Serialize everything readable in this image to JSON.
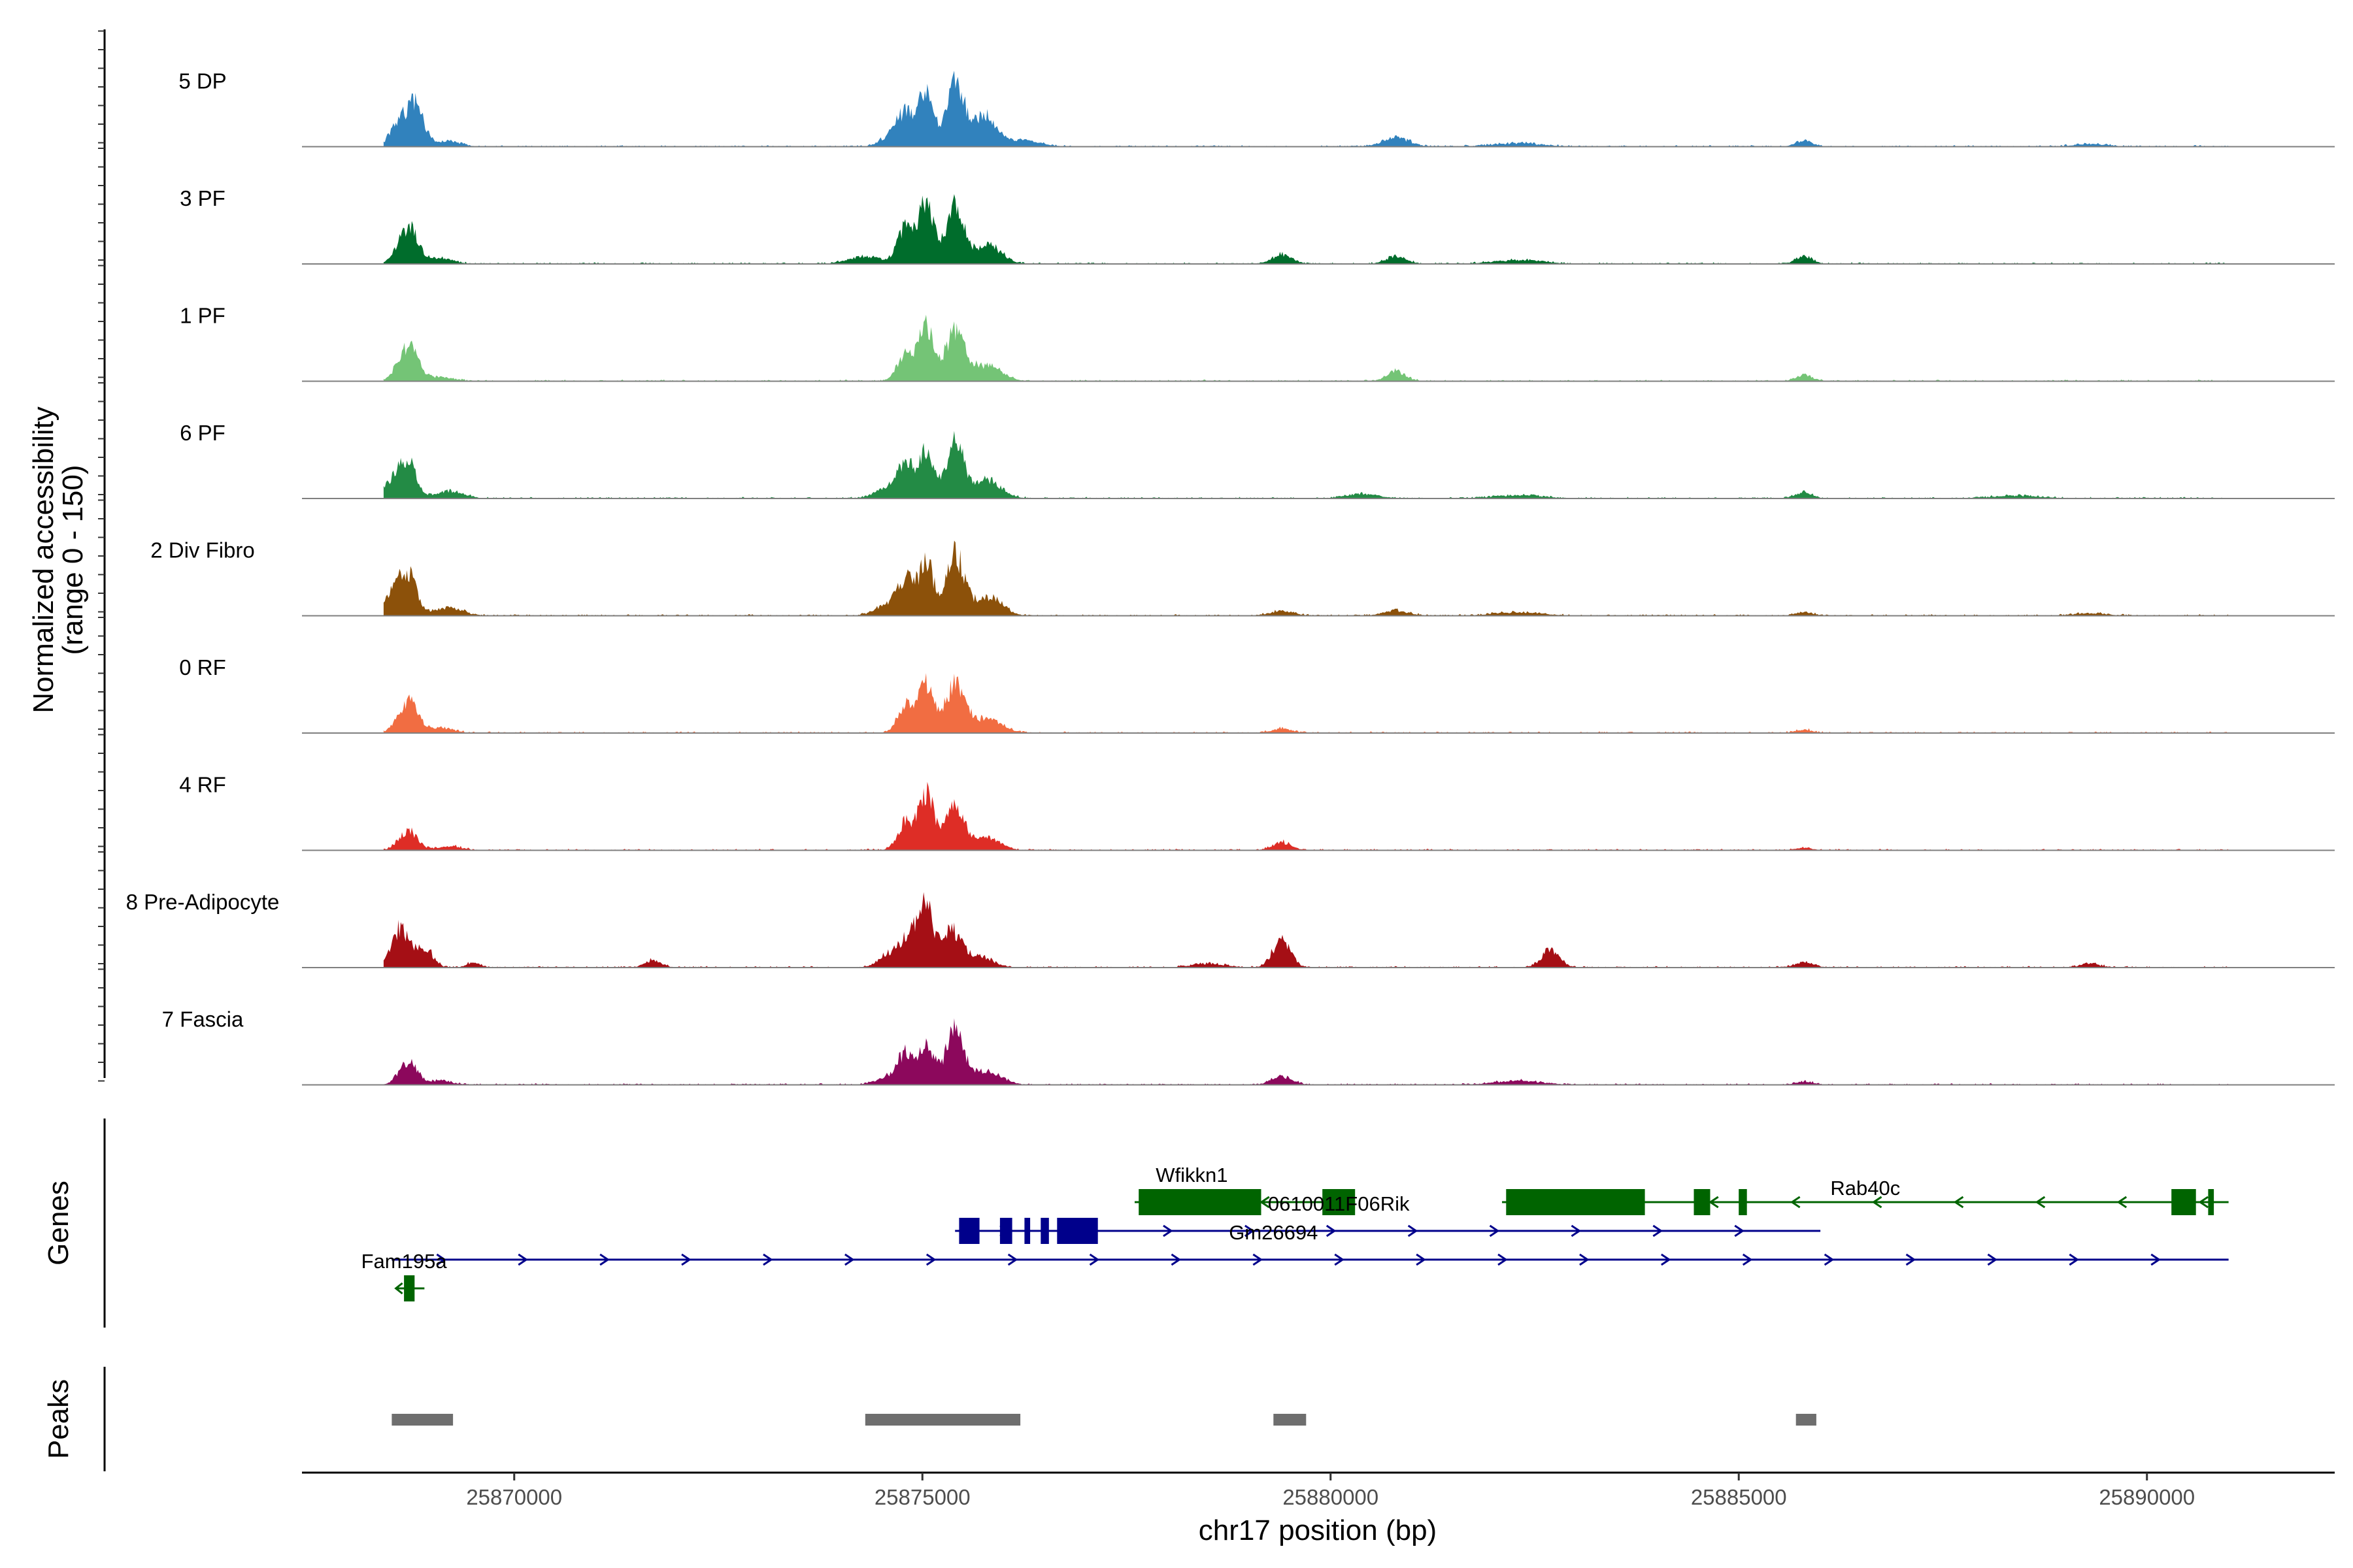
{
  "chart_data": {
    "type": "area",
    "title": "",
    "ylabel_line1": "Normalized accessibility",
    "ylabel_line2": "(range 0 - 150)",
    "xlabel": "chr17 position (bp)",
    "xlim": [
      25867400,
      25892300
    ],
    "ylim": [
      0,
      150
    ],
    "x_ticks": [
      25870000,
      25875000,
      25880000,
      25885000,
      25890000
    ],
    "x_tick_labels": [
      "25870000",
      "25875000",
      "25880000",
      "25885000",
      "25890000"
    ],
    "signal_range": [
      25868400,
      25891000
    ],
    "tracks": [
      {
        "name": "5 DP",
        "color": "#3182BD",
        "peaks": [
          [
            25868600,
            38,
            110
          ],
          [
            25868800,
            60,
            100
          ],
          [
            25869200,
            8,
            150
          ],
          [
            25874600,
            14,
            120
          ],
          [
            25874800,
            52,
            110
          ],
          [
            25875050,
            80,
            90
          ],
          [
            25875400,
            95,
            110
          ],
          [
            25875750,
            48,
            140
          ],
          [
            25876200,
            10,
            220
          ],
          [
            25880800,
            14,
            160
          ],
          [
            25882300,
            5,
            300
          ],
          [
            25885800,
            10,
            100
          ],
          [
            25889300,
            4,
            200
          ]
        ]
      },
      {
        "name": "3 PF",
        "color": "#006D2C",
        "peaks": [
          [
            25868700,
            58,
            120
          ],
          [
            25869100,
            8,
            150
          ],
          [
            25874300,
            12,
            200
          ],
          [
            25874800,
            60,
            100
          ],
          [
            25875050,
            95,
            90
          ],
          [
            25875400,
            88,
            110
          ],
          [
            25875800,
            30,
            160
          ],
          [
            25879400,
            14,
            120
          ],
          [
            25880800,
            12,
            120
          ],
          [
            25882300,
            6,
            300
          ],
          [
            25885800,
            12,
            100
          ]
        ]
      },
      {
        "name": "1 PF",
        "color": "#74C476",
        "peaks": [
          [
            25868700,
            55,
            120
          ],
          [
            25869100,
            6,
            150
          ],
          [
            25874800,
            46,
            100
          ],
          [
            25875050,
            85,
            90
          ],
          [
            25875400,
            75,
            120
          ],
          [
            25875800,
            25,
            170
          ],
          [
            25880800,
            16,
            110
          ],
          [
            25885800,
            10,
            100
          ]
        ]
      },
      {
        "name": "6 PF",
        "color": "#238B45",
        "peaks": [
          [
            25868500,
            26,
            110
          ],
          [
            25868700,
            55,
            100
          ],
          [
            25869200,
            12,
            170
          ],
          [
            25874600,
            18,
            160
          ],
          [
            25874800,
            50,
            100
          ],
          [
            25875050,
            70,
            90
          ],
          [
            25875400,
            85,
            110
          ],
          [
            25875800,
            28,
            170
          ],
          [
            25880400,
            7,
            200
          ],
          [
            25882300,
            5,
            300
          ],
          [
            25885800,
            10,
            100
          ],
          [
            25888400,
            4,
            300
          ]
        ]
      },
      {
        "name": "2 Div Fibro",
        "color": "#8C510A",
        "peaks": [
          [
            25868500,
            30,
            120
          ],
          [
            25868700,
            60,
            110
          ],
          [
            25869200,
            12,
            170
          ],
          [
            25874600,
            18,
            160
          ],
          [
            25874800,
            50,
            100
          ],
          [
            25875050,
            80,
            90
          ],
          [
            25875400,
            95,
            110
          ],
          [
            25875800,
            30,
            170
          ],
          [
            25879400,
            7,
            150
          ],
          [
            25880800,
            8,
            150
          ],
          [
            25882300,
            5,
            300
          ],
          [
            25885800,
            6,
            100
          ],
          [
            25889300,
            4,
            200
          ]
        ]
      },
      {
        "name": "0 RF",
        "color": "#F16D42",
        "peaks": [
          [
            25868700,
            48,
            120
          ],
          [
            25869100,
            8,
            150
          ],
          [
            25874800,
            45,
            100
          ],
          [
            25875050,
            80,
            90
          ],
          [
            25875400,
            75,
            120
          ],
          [
            25875800,
            22,
            170
          ],
          [
            25879400,
            7,
            120
          ],
          [
            25885800,
            5,
            100
          ]
        ]
      },
      {
        "name": "4 RF",
        "color": "#DE2D26",
        "peaks": [
          [
            25868700,
            30,
            110
          ],
          [
            25869200,
            6,
            150
          ],
          [
            25874800,
            44,
            100
          ],
          [
            25875050,
            90,
            90
          ],
          [
            25875400,
            65,
            120
          ],
          [
            25875800,
            18,
            160
          ],
          [
            25879400,
            12,
            120
          ],
          [
            25885800,
            4,
            100
          ]
        ]
      },
      {
        "name": "8 Pre-Adipocyte",
        "color": "#A50F15",
        "peaks": [
          [
            25868600,
            60,
            110
          ],
          [
            25868900,
            30,
            100
          ],
          [
            25869500,
            8,
            80
          ],
          [
            25871700,
            12,
            100
          ],
          [
            25874600,
            20,
            130
          ],
          [
            25874850,
            50,
            110
          ],
          [
            25875050,
            85,
            90
          ],
          [
            25875350,
            58,
            120
          ],
          [
            25875700,
            18,
            160
          ],
          [
            25878500,
            6,
            200
          ],
          [
            25879400,
            42,
            110
          ],
          [
            25882700,
            28,
            110
          ],
          [
            25885800,
            8,
            120
          ],
          [
            25889300,
            6,
            120
          ]
        ]
      },
      {
        "name": "7 Fascia",
        "color": "#8C085C",
        "peaks": [
          [
            25868700,
            35,
            110
          ],
          [
            25869100,
            6,
            150
          ],
          [
            25874600,
            12,
            160
          ],
          [
            25874800,
            45,
            100
          ],
          [
            25875050,
            65,
            90
          ],
          [
            25875400,
            85,
            110
          ],
          [
            25875800,
            22,
            170
          ],
          [
            25879400,
            14,
            120
          ],
          [
            25882300,
            6,
            300
          ],
          [
            25885800,
            5,
            100
          ]
        ]
      }
    ],
    "genes_panel_label": "Genes",
    "genes": [
      {
        "name": "Wfikkn1",
        "strand": "-",
        "color": "#006400",
        "row": 2,
        "start": 25877600,
        "end": 25880300,
        "exons": [
          [
            25877650,
            25879150
          ],
          [
            25879900,
            25880300
          ]
        ],
        "label_x": 25878300,
        "label_row": 1.05
      },
      {
        "name": "Rab40c",
        "strand": "-",
        "color": "#006400",
        "row": 2,
        "start": 25882100,
        "end": 25891000,
        "exons": [
          [
            25882150,
            25883850
          ],
          [
            25884450,
            25884650
          ],
          [
            25885000,
            25885100
          ],
          [
            25890300,
            25890600
          ],
          [
            25890750,
            25890820
          ]
        ],
        "label_x": 25886550,
        "label_row": 1.5
      },
      {
        "name": "0610011F06Rik",
        "strand": "+",
        "color": "#00008B",
        "row": 3,
        "start": 25875400,
        "end": 25886000,
        "exons": [
          [
            25875450,
            25875700
          ],
          [
            25875950,
            25876100
          ],
          [
            25876250,
            25876320
          ],
          [
            25876450,
            25876550
          ],
          [
            25876650,
            25877150
          ]
        ],
        "label_x": 25880100,
        "label_row": 2.05
      },
      {
        "name": "Gm26694",
        "strand": "+",
        "color": "#00008B",
        "row": 4,
        "start": 25868500,
        "end": 25891000,
        "exons": [],
        "label_x": 25879300,
        "label_row": 3.05
      },
      {
        "name": "Fam195a",
        "strand": "-",
        "color": "#006400",
        "row": 5,
        "start": 25868550,
        "end": 25868900,
        "exons": [
          [
            25868650,
            25868780
          ]
        ],
        "label_x": 25868650,
        "label_row": 4.05
      }
    ],
    "peaks_panel_label": "Peaks",
    "peak_regions": [
      [
        25868500,
        25869250
      ],
      [
        25874300,
        25876200
      ],
      [
        25879300,
        25879700
      ],
      [
        25885700,
        25885950
      ]
    ]
  }
}
